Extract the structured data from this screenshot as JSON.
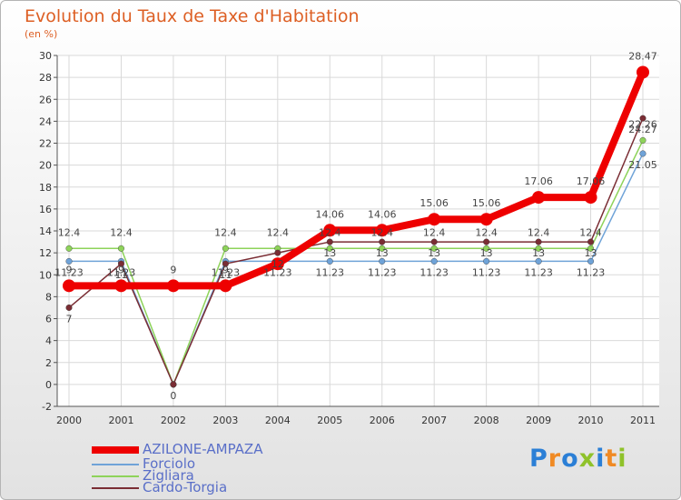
{
  "title": "Evolution du Taux de Taxe d'Habitation",
  "subtitle": "(en %)",
  "logo": {
    "letters": [
      "P",
      "r",
      "o",
      "x",
      "i",
      "t",
      "i"
    ],
    "colors": [
      "#2b7fd6",
      "#f08a24",
      "#2b7fd6",
      "#8fc22a",
      "#2b7fd6",
      "#f08a24",
      "#8fc22a"
    ]
  },
  "chart_data": {
    "type": "line",
    "title": "Evolution du Taux de Taxe d'Habitation",
    "ylabel": "(en %)",
    "xlabel": "",
    "categories": [
      "2000",
      "2001",
      "2002",
      "2003",
      "2004",
      "2005",
      "2006",
      "2007",
      "2008",
      "2009",
      "2010",
      "2011"
    ],
    "ylim": [
      -2,
      30
    ],
    "yticks": [
      "-2",
      "0",
      "2",
      "4",
      "6",
      "8",
      "10",
      "12",
      "14",
      "16",
      "18",
      "20",
      "22",
      "24",
      "26",
      "28",
      "30"
    ],
    "grid": true,
    "legend_position": "bottom-left",
    "series": [
      {
        "name": "AZILONE-AMPAZA",
        "color": "#ee0000",
        "values": [
          9,
          9,
          9,
          9,
          11,
          14.06,
          14.06,
          15.06,
          15.06,
          17.06,
          17.06,
          28.47
        ],
        "labels": [
          "9",
          "9",
          "9",
          "9",
          "",
          "14.06",
          "14.06",
          "15.06",
          "15.06",
          "17.06",
          "17.06",
          "28.47"
        ]
      },
      {
        "name": "Forciolo",
        "color": "#6fa3d8",
        "values": [
          11.23,
          11.23,
          0,
          11.23,
          11.23,
          11.23,
          11.23,
          11.23,
          11.23,
          11.23,
          11.23,
          21.05
        ],
        "labels": [
          "11.23",
          "11.23",
          "",
          "11.23",
          "11.23",
          "11.23",
          "11.23",
          "11.23",
          "11.23",
          "11.23",
          "11.23",
          "21.05"
        ]
      },
      {
        "name": "Zigliara",
        "color": "#8ed35a",
        "values": [
          12.4,
          12.4,
          0,
          12.4,
          12.4,
          12.4,
          12.4,
          12.4,
          12.4,
          12.4,
          12.4,
          22.26
        ],
        "labels": [
          "12.4",
          "12.4",
          "",
          "12.4",
          "12.4",
          "12.4",
          "12.4",
          "12.4",
          "12.4",
          "12.4",
          "12.4",
          "22.26"
        ]
      },
      {
        "name": "Cardo-Torgia",
        "color": "#7a2d34",
        "values": [
          7,
          11,
          0,
          11,
          12,
          13,
          13,
          13,
          13,
          13,
          13,
          24.27
        ],
        "labels": [
          "7",
          "11",
          "0",
          "11",
          "12",
          "13",
          "13",
          "13",
          "13",
          "13",
          "13",
          "24.27"
        ]
      }
    ]
  }
}
